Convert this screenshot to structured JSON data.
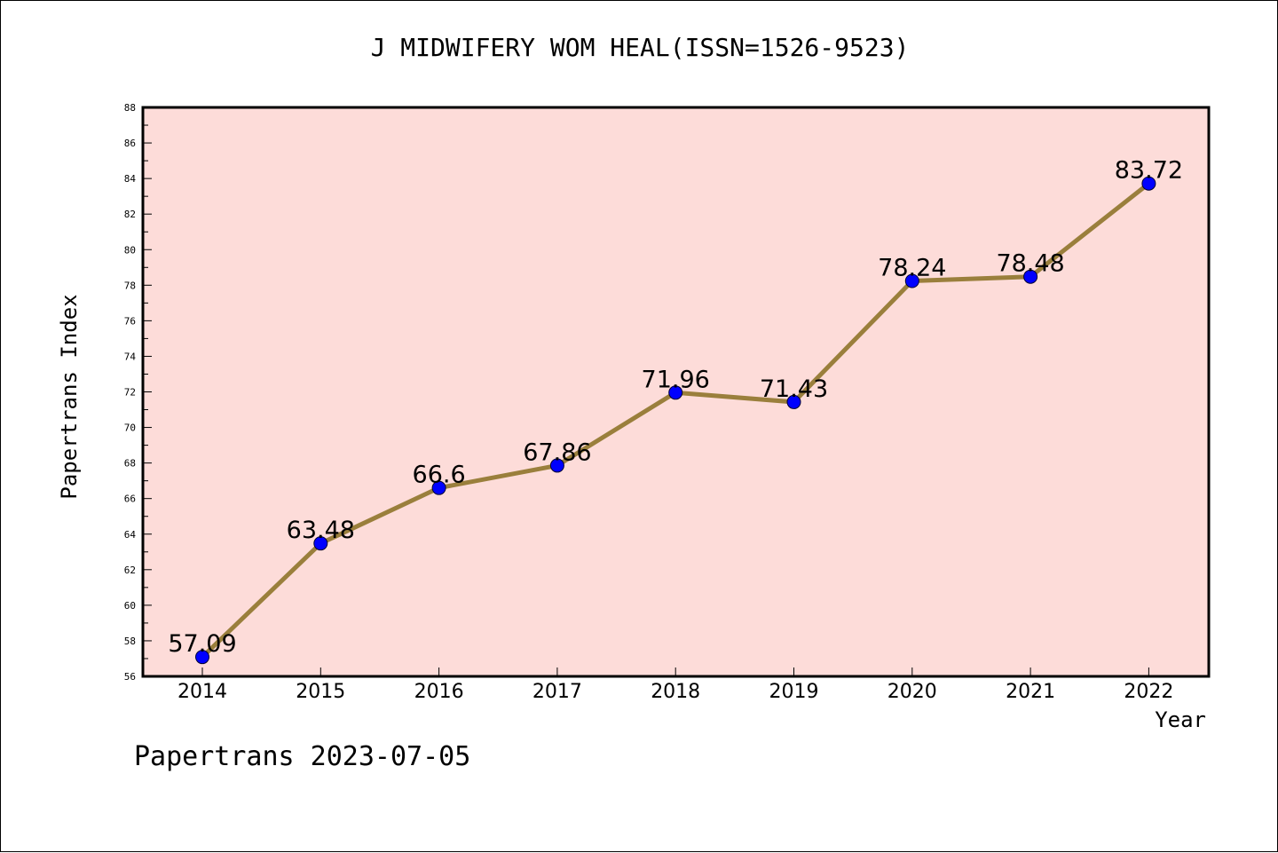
{
  "chart_data": {
    "type": "line",
    "title": "J MIDWIFERY WOM HEAL(ISSN=1526-9523)",
    "xlabel": "Year",
    "ylabel": "Papertrans Index",
    "categories": [
      "2014",
      "2015",
      "2016",
      "2017",
      "2018",
      "2019",
      "2020",
      "2021",
      "2022"
    ],
    "series": [
      {
        "values": [
          57.09,
          63.48,
          66.6,
          67.86,
          71.96,
          71.43,
          78.24,
          78.48,
          83.72
        ],
        "labels": [
          "57.09",
          "63.48",
          "66.6",
          "67.86",
          "71.96",
          "71.43",
          "78.24",
          "78.48",
          "83.72"
        ]
      }
    ],
    "ylim": [
      56,
      88
    ],
    "yticks": [
      "56",
      "58",
      "60",
      "62",
      "64",
      "66",
      "68",
      "70",
      "72",
      "74",
      "76",
      "78",
      "80",
      "82",
      "84",
      "86",
      "88"
    ],
    "grid": false,
    "colors": {
      "plot_background": "#fddcd9",
      "line": "#9a7f3c",
      "marker": "#0000ff",
      "axis": "#000000"
    }
  },
  "footer": {
    "text": "Papertrans 2023-07-05"
  }
}
